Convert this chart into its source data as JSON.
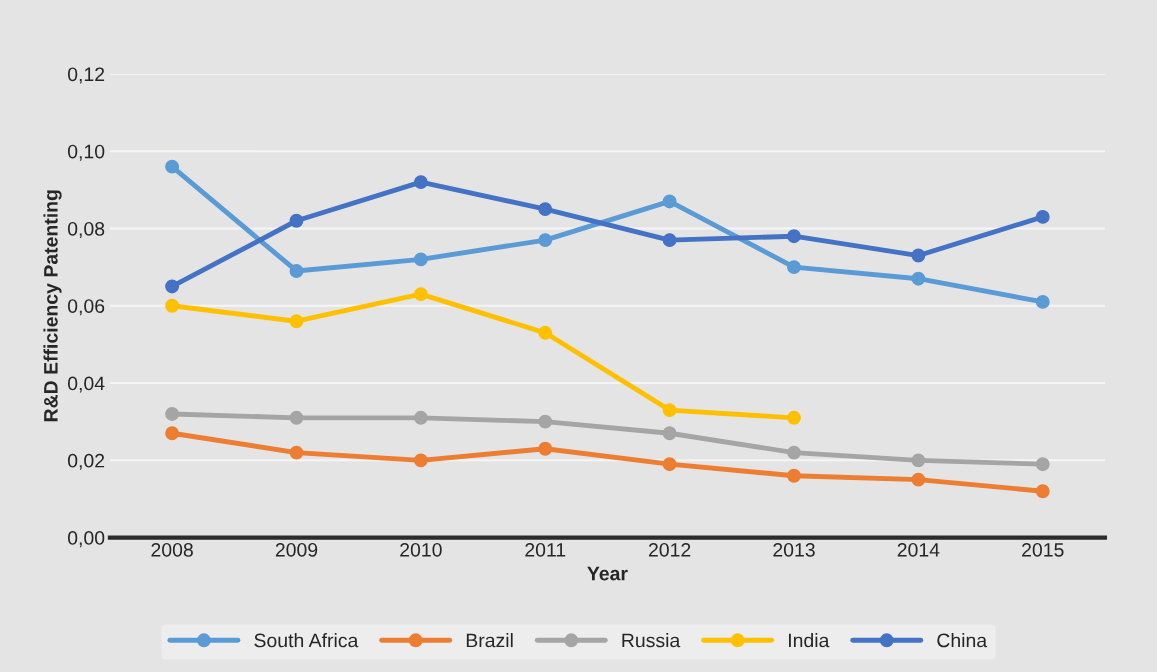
{
  "chart_data": {
    "type": "line",
    "xlabel": "Year",
    "ylabel": "R&D Efficiency Patenting",
    "categories": [
      "2008",
      "2009",
      "2010",
      "2011",
      "2012",
      "2013",
      "2014",
      "2015"
    ],
    "series": [
      {
        "name": "South Africa",
        "color": "#5b9bd5",
        "values": [
          0.096,
          0.069,
          0.072,
          0.077,
          0.087,
          0.07,
          0.067,
          0.061
        ]
      },
      {
        "name": "Brazil",
        "color": "#ed7d31",
        "values": [
          0.027,
          0.022,
          0.02,
          0.023,
          0.019,
          0.016,
          0.015,
          0.012
        ]
      },
      {
        "name": "Russia",
        "color": "#a5a5a5",
        "values": [
          0.032,
          0.031,
          0.031,
          0.03,
          0.027,
          0.022,
          0.02,
          0.019
        ]
      },
      {
        "name": "India",
        "color": "#ffc000",
        "values": [
          0.06,
          0.056,
          0.063,
          0.053,
          0.033,
          0.031,
          null,
          null
        ]
      },
      {
        "name": "China",
        "color": "#4472c4",
        "values": [
          0.065,
          0.082,
          0.092,
          0.085,
          0.077,
          0.078,
          0.073,
          0.083
        ]
      }
    ],
    "ylim": [
      0,
      0.12
    ],
    "yticks": [
      {
        "value": 0,
        "label": "0,00"
      },
      {
        "value": 0.02,
        "label": "0,02"
      },
      {
        "value": 0.04,
        "label": "0,04"
      },
      {
        "value": 0.06,
        "label": "0,06"
      },
      {
        "value": 0.08,
        "label": "0,08"
      },
      {
        "value": 0.1,
        "label": "0,10"
      },
      {
        "value": 0.12,
        "label": "0,12"
      }
    ],
    "grid": "y",
    "legend": "bottom",
    "marker": "circle",
    "line_style": "solid"
  }
}
